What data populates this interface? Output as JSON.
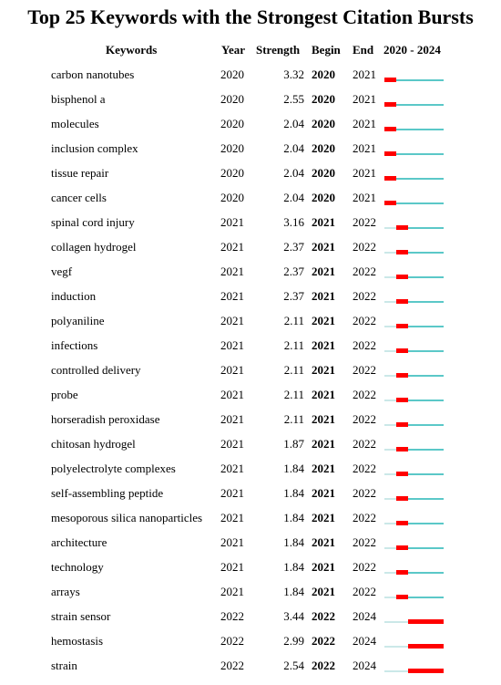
{
  "chart_data": {
    "type": "table",
    "title": "Top 25 Keywords with the Strongest Citation Bursts",
    "columns": [
      "Keywords",
      "Year",
      "Strength",
      "Begin",
      "End",
      "2020 - 2024"
    ],
    "timeline_range": [
      2020,
      2024
    ],
    "colors": {
      "burst": "#ff0000",
      "active": "#5bc8c8",
      "inactive": "#cbe8e8"
    },
    "rows": [
      {
        "keyword": "carbon nanotubes",
        "year": "2020",
        "strength": "3.32",
        "begin": "2020",
        "end": "2021"
      },
      {
        "keyword": "bisphenol a",
        "year": "2020",
        "strength": "2.55",
        "begin": "2020",
        "end": "2021"
      },
      {
        "keyword": "molecules",
        "year": "2020",
        "strength": "2.04",
        "begin": "2020",
        "end": "2021"
      },
      {
        "keyword": "inclusion complex",
        "year": "2020",
        "strength": "2.04",
        "begin": "2020",
        "end": "2021"
      },
      {
        "keyword": "tissue repair",
        "year": "2020",
        "strength": "2.04",
        "begin": "2020",
        "end": "2021"
      },
      {
        "keyword": "cancer cells",
        "year": "2020",
        "strength": "2.04",
        "begin": "2020",
        "end": "2021"
      },
      {
        "keyword": "spinal cord injury",
        "year": "2021",
        "strength": "3.16",
        "begin": "2021",
        "end": "2022"
      },
      {
        "keyword": "collagen hydrogel",
        "year": "2021",
        "strength": "2.37",
        "begin": "2021",
        "end": "2022"
      },
      {
        "keyword": "vegf",
        "year": "2021",
        "strength": "2.37",
        "begin": "2021",
        "end": "2022"
      },
      {
        "keyword": "induction",
        "year": "2021",
        "strength": "2.37",
        "begin": "2021",
        "end": "2022"
      },
      {
        "keyword": "polyaniline",
        "year": "2021",
        "strength": "2.11",
        "begin": "2021",
        "end": "2022"
      },
      {
        "keyword": "infections",
        "year": "2021",
        "strength": "2.11",
        "begin": "2021",
        "end": "2022"
      },
      {
        "keyword": "controlled delivery",
        "year": "2021",
        "strength": "2.11",
        "begin": "2021",
        "end": "2022"
      },
      {
        "keyword": "probe",
        "year": "2021",
        "strength": "2.11",
        "begin": "2021",
        "end": "2022"
      },
      {
        "keyword": "horseradish peroxidase",
        "year": "2021",
        "strength": "2.11",
        "begin": "2021",
        "end": "2022"
      },
      {
        "keyword": "chitosan hydrogel",
        "year": "2021",
        "strength": "1.87",
        "begin": "2021",
        "end": "2022"
      },
      {
        "keyword": "polyelectrolyte complexes",
        "year": "2021",
        "strength": "1.84",
        "begin": "2021",
        "end": "2022"
      },
      {
        "keyword": "self-assembling peptide",
        "year": "2021",
        "strength": "1.84",
        "begin": "2021",
        "end": "2022"
      },
      {
        "keyword": "mesoporous silica nanoparticles",
        "year": "2021",
        "strength": "1.84",
        "begin": "2021",
        "end": "2022"
      },
      {
        "keyword": "architecture",
        "year": "2021",
        "strength": "1.84",
        "begin": "2021",
        "end": "2022"
      },
      {
        "keyword": "technology",
        "year": "2021",
        "strength": "1.84",
        "begin": "2021",
        "end": "2022"
      },
      {
        "keyword": "arrays",
        "year": "2021",
        "strength": "1.84",
        "begin": "2021",
        "end": "2022"
      },
      {
        "keyword": "strain sensor",
        "year": "2022",
        "strength": "3.44",
        "begin": "2022",
        "end": "2024"
      },
      {
        "keyword": "hemostasis",
        "year": "2022",
        "strength": "2.99",
        "begin": "2022",
        "end": "2024"
      },
      {
        "keyword": "strain",
        "year": "2022",
        "strength": "2.54",
        "begin": "2022",
        "end": "2024"
      }
    ]
  }
}
